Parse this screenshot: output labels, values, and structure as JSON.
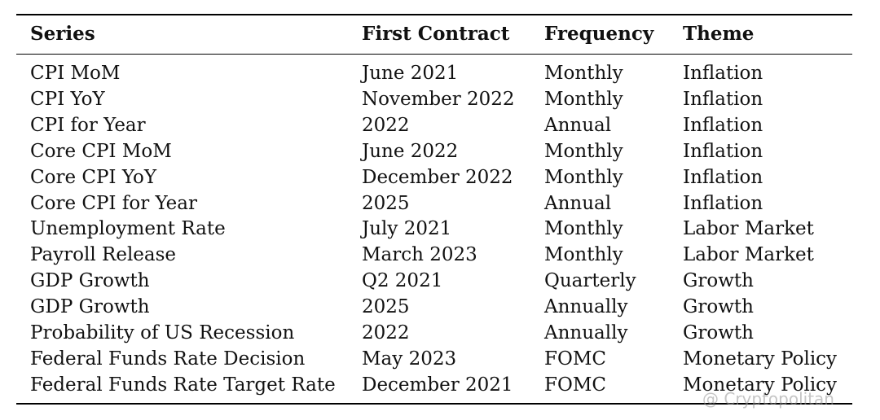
{
  "table": {
    "header": [
      "Series",
      "First Contract",
      "Frequency",
      "Theme"
    ],
    "rows": [
      [
        "CPI MoM",
        "June 2021",
        "Monthly",
        "Inflation"
      ],
      [
        "CPI YoY",
        "November 2022",
        "Monthly",
        "Inflation"
      ],
      [
        "CPI for Year",
        "2022",
        "Annual",
        "Inflation"
      ],
      [
        "Core CPI MoM",
        "June 2022",
        "Monthly",
        "Inflation"
      ],
      [
        "Core CPI YoY",
        "December 2022",
        "Monthly",
        "Inflation"
      ],
      [
        "Core CPI for Year",
        "2025",
        "Annual",
        "Inflation"
      ],
      [
        "Unemployment Rate",
        "July 2021",
        "Monthly",
        "Labor Market"
      ],
      [
        "Payroll Release",
        "March 2023",
        "Monthly",
        "Labor Market"
      ],
      [
        "GDP Growth",
        "Q2 2021",
        "Quarterly",
        "Growth"
      ],
      [
        "GDP Growth",
        "2025",
        "Annually",
        "Growth"
      ],
      [
        "Probability of US Recession",
        "2022",
        "Annually",
        "Growth"
      ],
      [
        "Federal Funds Rate Decision",
        "May 2023",
        "FOMC",
        "Monetary Policy"
      ],
      [
        "Federal Funds Rate Target Rate",
        "December 2021",
        "FOMC",
        "Monetary Policy"
      ]
    ]
  },
  "watermark": "@ Cryptopolitan"
}
